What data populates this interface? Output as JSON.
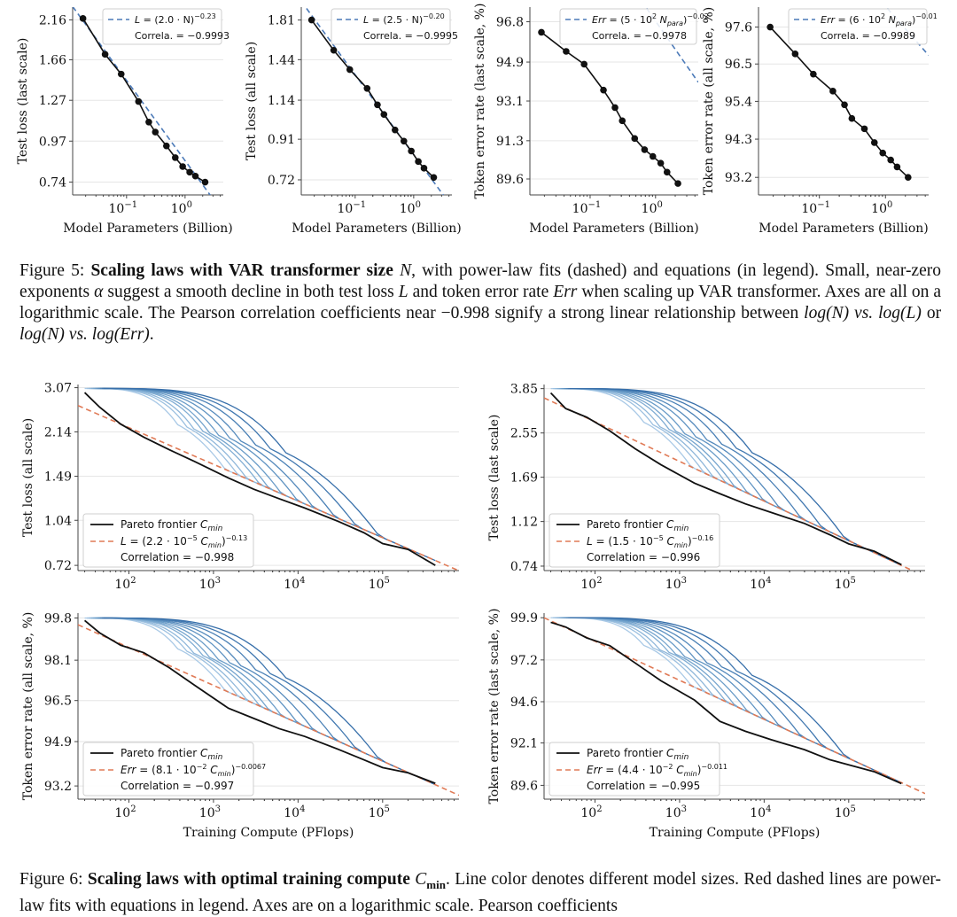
{
  "figure5": {
    "caption": {
      "label": "Figure 5:",
      "bold": "Scaling laws with VAR transformer size",
      "sym_n": "N",
      "text1": ", with power-law fits (dashed) and equations (in legend). Small, near-zero exponents",
      "sym_alpha": "α",
      "text2": "suggest a smooth decline in both test loss",
      "sym_l": "L",
      "text3": "and token error rate",
      "sym_err": "Err",
      "text4": "when scaling up VAR transformer. Axes are all on a logarithmic scale. The Pearson correlation coefficients near",
      "corr": "−0.998",
      "text5": "signify a strong linear relationship between",
      "logn1": "log(N)",
      "vs1": "vs.",
      "logl": "log(L)",
      "or": "or",
      "logn2": "log(N)",
      "vs2": "vs.",
      "logerr": "log(Err)",
      "end": "."
    }
  },
  "figure6": {
    "caption": {
      "label": "Figure 6:",
      "bold": "Scaling laws with optimal training compute",
      "sym_c": "C",
      "sym_c_sub": "min",
      "text1": ". Line color denotes different model sizes. Red dashed lines are power-law fits with equations in legend. Axes are on a logarithmic scale. Pearson coefficients"
    }
  },
  "chart_data": [
    {
      "id": "f5a",
      "type": "line",
      "title": "",
      "xlabel": "Model Parameters (Billion)",
      "ylabel": "Test loss (last scale)",
      "x_scale": "log",
      "y_scale": "log",
      "xlim": [
        0.012,
        4.5
      ],
      "ylim": [
        0.68,
        2.35
      ],
      "x_ticks": [
        0.1,
        1
      ],
      "x_tick_labels": [
        "10^-1",
        "10^0"
      ],
      "y_ticks": [
        0.74,
        0.97,
        1.27,
        1.66,
        2.16
      ],
      "y_tick_labels": [
        "0.74",
        "0.97",
        "1.27",
        "1.66",
        "2.16"
      ],
      "fit": {
        "a": 2.0,
        "e": -0.23,
        "mult": 1
      },
      "legend": {
        "fit_prefix": "L",
        "fit_mid": "(2.0 · N)",
        "fit_exp": "−0.23",
        "corr_label": "Correla. = −0.9993"
      },
      "series": [
        {
          "x": [
            0.018,
            0.043,
            0.081,
            0.16,
            0.24,
            0.31,
            0.48,
            0.68,
            0.91,
            1.2,
            1.5,
            2.2
          ],
          "y": [
            2.18,
            1.72,
            1.51,
            1.26,
            1.1,
            1.03,
            0.94,
            0.87,
            0.82,
            0.79,
            0.77,
            0.74
          ]
        }
      ]
    },
    {
      "id": "f5b",
      "type": "line",
      "title": "",
      "xlabel": "Model Parameters (Billion)",
      "ylabel": "Test loss (all scale)",
      "x_scale": "log",
      "y_scale": "log",
      "xlim": [
        0.012,
        4.5
      ],
      "ylim": [
        0.66,
        1.95
      ],
      "x_ticks": [
        0.1,
        1
      ],
      "x_tick_labels": [
        "10^-1",
        "10^0"
      ],
      "y_ticks": [
        0.72,
        0.91,
        1.14,
        1.44,
        1.81
      ],
      "y_tick_labels": [
        "0.72",
        "0.91",
        "1.14",
        "1.44",
        "1.81"
      ],
      "fit": {
        "a": 2.5,
        "e": -0.2,
        "mult": 1
      },
      "legend": {
        "fit_prefix": "L",
        "fit_mid": "(2.5 · N)",
        "fit_exp": "−0.20",
        "corr_label": "Correla. = −0.9995"
      },
      "series": [
        {
          "x": [
            0.018,
            0.043,
            0.081,
            0.16,
            0.24,
            0.31,
            0.48,
            0.68,
            0.91,
            1.2,
            1.5,
            2.2
          ],
          "y": [
            1.81,
            1.52,
            1.36,
            1.22,
            1.11,
            1.05,
            0.96,
            0.9,
            0.85,
            0.8,
            0.77,
            0.73
          ]
        }
      ]
    },
    {
      "id": "f5c",
      "type": "line",
      "title": "",
      "xlabel": "Model Parameters (Billion)",
      "ylabel": "Token error rate (last scale, %)",
      "x_scale": "log",
      "y_scale": "log",
      "xlim": [
        0.012,
        4.5
      ],
      "ylim": [
        88.9,
        97.5
      ],
      "x_ticks": [
        0.1,
        1
      ],
      "x_tick_labels": [
        "10^-1",
        "10^0"
      ],
      "y_ticks": [
        89.6,
        91.3,
        93.1,
        94.9,
        96.8
      ],
      "y_tick_labels": [
        "89.6",
        "91.3",
        "93.1",
        "94.9",
        "96.8"
      ],
      "fit": {
        "a": 5,
        "e": -0.02,
        "mult": 100
      },
      "legend": {
        "fit_prefix": "Err",
        "fit_mid": "(5 · 10",
        "fit_mid_sup": "2",
        "fit_mid2": " N",
        "fit_sub": "para",
        "fit_exp": "−0.02",
        "corr_label": "Correla. = −0.9978"
      },
      "series": [
        {
          "x": [
            0.018,
            0.043,
            0.081,
            0.16,
            0.24,
            0.31,
            0.48,
            0.68,
            0.91,
            1.2,
            1.5,
            2.2
          ],
          "y": [
            96.3,
            95.4,
            94.8,
            93.6,
            92.8,
            92.2,
            91.4,
            90.9,
            90.6,
            90.3,
            89.9,
            89.4
          ]
        }
      ]
    },
    {
      "id": "f5d",
      "type": "line",
      "title": "",
      "xlabel": "Model Parameters (Billion)",
      "ylabel": "Token error rate (all scale, %)",
      "x_scale": "log",
      "y_scale": "log",
      "xlim": [
        0.012,
        4.5
      ],
      "ylim": [
        92.7,
        98.2
      ],
      "x_ticks": [
        0.1,
        1
      ],
      "x_tick_labels": [
        "10^-1",
        "10^0"
      ],
      "y_ticks": [
        93.2,
        94.3,
        95.4,
        96.5,
        97.6
      ],
      "y_tick_labels": [
        "93.2",
        "94.3",
        "95.4",
        "96.5",
        "97.6"
      ],
      "fit": {
        "a": 6,
        "e": -0.01,
        "mult": 100
      },
      "legend": {
        "fit_prefix": "Err",
        "fit_mid": "(6 · 10",
        "fit_mid_sup": "2",
        "fit_mid2": " N",
        "fit_sub": "para",
        "fit_exp": "−0.01",
        "corr_label": "Correla. = −0.9989"
      },
      "series": [
        {
          "x": [
            0.018,
            0.043,
            0.081,
            0.16,
            0.24,
            0.31,
            0.48,
            0.68,
            0.91,
            1.2,
            1.5,
            2.2
          ],
          "y": [
            97.6,
            96.8,
            96.2,
            95.7,
            95.3,
            94.9,
            94.6,
            94.2,
            93.9,
            93.7,
            93.5,
            93.2
          ]
        }
      ]
    },
    {
      "id": "f6a",
      "type": "line",
      "title": "",
      "xlabel": "",
      "ylabel": "Test loss (all scale)",
      "x_scale": "log",
      "y_scale": "log",
      "xlim": [
        25,
        800000
      ],
      "ylim": [
        0.69,
        3.15
      ],
      "x_ticks": [
        100,
        1000,
        10000,
        100000
      ],
      "x_tick_labels": [
        "10^2",
        "10^3",
        "10^4",
        "10^5"
      ],
      "y_ticks": [
        0.72,
        1.04,
        1.49,
        2.14,
        3.07
      ],
      "y_tick_labels": [
        "0.72",
        "1.04",
        "1.49",
        "2.14",
        "3.07"
      ],
      "fit": {
        "a": 2.2e-05,
        "e": -0.13,
        "mult": 1
      },
      "legend": {
        "pareto_label": "Pareto frontier",
        "pareto_sym": "C",
        "pareto_sub": "min",
        "fit_prefix": "L",
        "fit_mid": "(2.2 · 10",
        "fit_mid_sup": "−5",
        "fit_mid2": " C",
        "fit_sub": "min",
        "fit_exp": "−0.13",
        "corr_label": "Correlation = −0.998"
      },
      "pareto": {
        "x": [
          30,
          45,
          80,
          150,
          300,
          600,
          1500,
          3000,
          6000,
          12000,
          30000,
          60000,
          100000,
          200000,
          420000
        ],
        "y": [
          2.95,
          2.62,
          2.28,
          2.05,
          1.85,
          1.68,
          1.47,
          1.34,
          1.24,
          1.15,
          1.03,
          0.94,
          0.86,
          0.82,
          0.72
        ]
      },
      "model_curves_x_end": [
        3000,
        4500,
        6000,
        9000,
        12000,
        18000,
        30000,
        50000,
        100000,
        200000,
        420000
      ],
      "model_curves_y_start": 3.05
    },
    {
      "id": "f6b",
      "type": "line",
      "title": "",
      "xlabel": "",
      "ylabel": "Test loss (last scale)",
      "x_scale": "log",
      "y_scale": "log",
      "xlim": [
        25,
        800000
      ],
      "ylim": [
        0.71,
        4.0
      ],
      "x_ticks": [
        100,
        1000,
        10000,
        100000
      ],
      "x_tick_labels": [
        "10^2",
        "10^3",
        "10^4",
        "10^5"
      ],
      "y_ticks": [
        0.74,
        1.12,
        1.69,
        2.55,
        3.85
      ],
      "y_tick_labels": [
        "0.74",
        "1.12",
        "1.69",
        "2.55",
        "3.85"
      ],
      "fit": {
        "a": 1.5e-05,
        "e": -0.16,
        "mult": 1
      },
      "legend": {
        "pareto_label": "Pareto frontier",
        "pareto_sym": "C",
        "pareto_sub": "min",
        "fit_prefix": "L",
        "fit_mid": "(1.5 · 10",
        "fit_mid_sup": "−5",
        "fit_mid2": " C",
        "fit_sub": "min",
        "fit_exp": "−0.16",
        "corr_label": "Correlation = −0.996"
      },
      "pareto": {
        "x": [
          30,
          45,
          80,
          150,
          300,
          600,
          1500,
          3000,
          6000,
          12000,
          30000,
          60000,
          100000,
          200000,
          420000
        ],
        "y": [
          3.7,
          3.2,
          2.95,
          2.6,
          2.2,
          1.9,
          1.6,
          1.45,
          1.32,
          1.22,
          1.1,
          0.99,
          0.91,
          0.85,
          0.75
        ]
      },
      "model_curves_x_end": [
        3000,
        4500,
        6000,
        9000,
        12000,
        18000,
        30000,
        50000,
        100000,
        200000,
        420000
      ],
      "model_curves_y_start": 3.85
    },
    {
      "id": "f6c",
      "type": "line",
      "title": "",
      "xlabel": "Training Compute (PFlops)",
      "ylabel": "Token error rate (all scale, %)",
      "x_scale": "log",
      "y_scale": "log",
      "xlim": [
        25,
        800000
      ],
      "ylim": [
        92.7,
        100.0
      ],
      "x_ticks": [
        100,
        1000,
        10000,
        100000
      ],
      "x_tick_labels": [
        "10^2",
        "10^3",
        "10^4",
        "10^5"
      ],
      "y_ticks": [
        93.2,
        94.9,
        96.5,
        98.1,
        99.8
      ],
      "y_tick_labels": [
        "93.2",
        "94.9",
        "96.5",
        "98.1",
        "99.8"
      ],
      "fit": {
        "a": 0.081,
        "e": -0.0067,
        "mult": 100
      },
      "legend": {
        "pareto_label": "Pareto frontier",
        "pareto_sym": "C",
        "pareto_sub": "min",
        "fit_prefix": "Err",
        "fit_mid": "(8.1 · 10",
        "fit_mid_sup": "−2",
        "fit_mid2": " C",
        "fit_sub": "min",
        "fit_exp": "−0.0067",
        "corr_label": "Correlation = −0.997"
      },
      "pareto": {
        "x": [
          30,
          45,
          80,
          150,
          300,
          600,
          1500,
          3000,
          6000,
          12000,
          30000,
          60000,
          100000,
          200000,
          420000
        ],
        "y": [
          99.7,
          99.2,
          98.7,
          98.4,
          97.8,
          97.1,
          96.2,
          95.8,
          95.4,
          95.1,
          94.6,
          94.2,
          93.9,
          93.7,
          93.3
        ]
      },
      "model_curves_x_end": [
        3000,
        4500,
        6000,
        9000,
        12000,
        18000,
        30000,
        50000,
        100000,
        200000,
        420000
      ],
      "model_curves_y_start": 99.8
    },
    {
      "id": "f6d",
      "type": "line",
      "title": "",
      "xlabel": "Training Compute (PFlops)",
      "ylabel": "Token error rate (last scale, %)",
      "x_scale": "log",
      "y_scale": "log",
      "xlim": [
        25,
        800000
      ],
      "ylim": [
        88.8,
        100.2
      ],
      "x_ticks": [
        100,
        1000,
        10000,
        100000
      ],
      "x_tick_labels": [
        "10^2",
        "10^3",
        "10^4",
        "10^5"
      ],
      "y_ticks": [
        89.6,
        92.1,
        94.6,
        97.2,
        99.9
      ],
      "y_tick_labels": [
        "89.6",
        "92.1",
        "94.6",
        "97.2",
        "99.9"
      ],
      "fit": {
        "a": 0.044,
        "e": -0.011,
        "mult": 100
      },
      "legend": {
        "pareto_label": "Pareto frontier",
        "pareto_sym": "C",
        "pareto_sub": "min",
        "fit_prefix": "Err",
        "fit_mid": "(4.4 · 10",
        "fit_mid_sup": "−2",
        "fit_mid2": " C",
        "fit_sub": "min",
        "fit_exp": "−0.011",
        "corr_label": "Correlation = −0.995"
      },
      "pareto": {
        "x": [
          30,
          45,
          80,
          150,
          300,
          600,
          1500,
          3000,
          6000,
          12000,
          30000,
          60000,
          100000,
          200000,
          420000
        ],
        "y": [
          99.6,
          99.3,
          98.6,
          98.1,
          97.0,
          95.9,
          94.7,
          93.4,
          92.8,
          92.3,
          91.7,
          91.1,
          90.8,
          90.4,
          89.7
        ]
      },
      "model_curves_x_end": [
        3000,
        4500,
        6000,
        9000,
        12000,
        18000,
        30000,
        50000,
        100000,
        200000,
        420000
      ],
      "model_curves_y_start": 99.9
    }
  ],
  "colors": {
    "data_line": "#111111",
    "fit_blue": "#4c7ab8",
    "fit_red": "#e07a56",
    "model_curves": [
      "#a9c9e6",
      "#9cc0e0",
      "#8fb7da",
      "#82aed4",
      "#76a5ce",
      "#6a9cc8",
      "#5f93c2",
      "#558abc",
      "#4b81b6",
      "#4178b0",
      "#376faa"
    ],
    "grid": "#e6e6e6",
    "axis": "#444444"
  }
}
